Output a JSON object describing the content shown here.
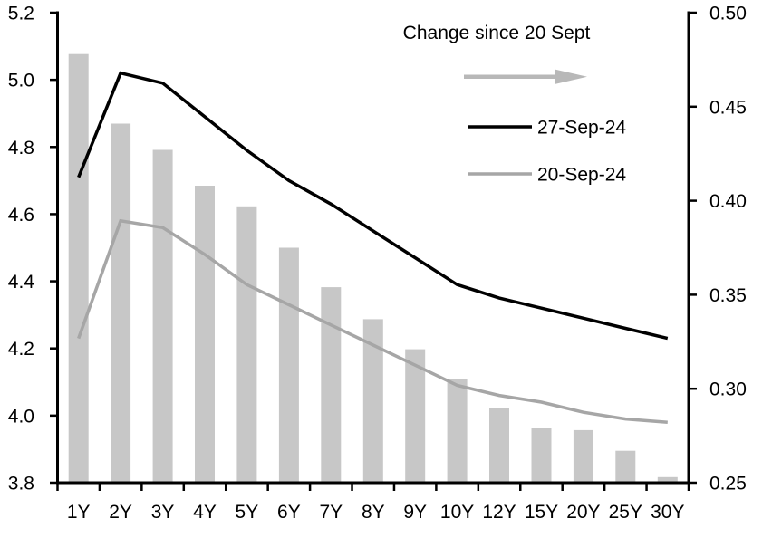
{
  "chart_data": {
    "type": "bar",
    "subtype": "bar+line combo, dual axis",
    "categories": [
      "1Y",
      "2Y",
      "3Y",
      "4Y",
      "5Y",
      "6Y",
      "7Y",
      "8Y",
      "9Y",
      "10Y",
      "12Y",
      "15Y",
      "20Y",
      "25Y",
      "30Y"
    ],
    "series": [
      {
        "name": "Change since 20 Sept",
        "type": "bar",
        "axis": "right",
        "color": "#c7c7c7",
        "values": [
          0.478,
          0.441,
          0.427,
          0.408,
          0.397,
          0.375,
          0.354,
          0.337,
          0.321,
          0.305,
          0.29,
          0.279,
          0.278,
          0.267,
          0.253
        ]
      },
      {
        "name": "27-Sep-24",
        "type": "line",
        "axis": "left",
        "color": "#000000",
        "values": [
          4.71,
          5.02,
          4.99,
          4.89,
          4.79,
          4.7,
          4.63,
          4.55,
          4.47,
          4.39,
          4.35,
          4.32,
          4.29,
          4.26,
          4.23
        ]
      },
      {
        "name": "20-Sep-24",
        "type": "line",
        "axis": "left",
        "color": "#a6a6a6",
        "values": [
          4.23,
          4.58,
          4.56,
          4.48,
          4.39,
          4.33,
          4.27,
          4.21,
          4.15,
          4.09,
          4.06,
          4.04,
          4.01,
          3.99,
          3.98
        ]
      }
    ],
    "left_axis": {
      "min": 3.8,
      "max": 5.2,
      "tick_step": 0.2,
      "tick_labels": [
        "5.2",
        "5.0",
        "4.8",
        "4.6",
        "4.4",
        "4.2",
        "4.0",
        "3.8"
      ]
    },
    "right_axis": {
      "min": 0.25,
      "max": 0.5,
      "tick_step": 0.05,
      "tick_labels": [
        "0.50",
        "0.45",
        "0.40",
        "0.35",
        "0.30",
        "0.25"
      ]
    },
    "legend": {
      "title": "Change since 20 Sept",
      "arrow_icon": "right-arrow",
      "arrow_color": "#b8b8b8",
      "entries": [
        {
          "label": "27-Sep-24",
          "color": "#000000"
        },
        {
          "label": "20-Sep-24",
          "color": "#a6a6a6"
        }
      ],
      "position": "top-right-inside"
    },
    "grid": false,
    "background": "#ffffff",
    "axis_color": "#000000"
  }
}
